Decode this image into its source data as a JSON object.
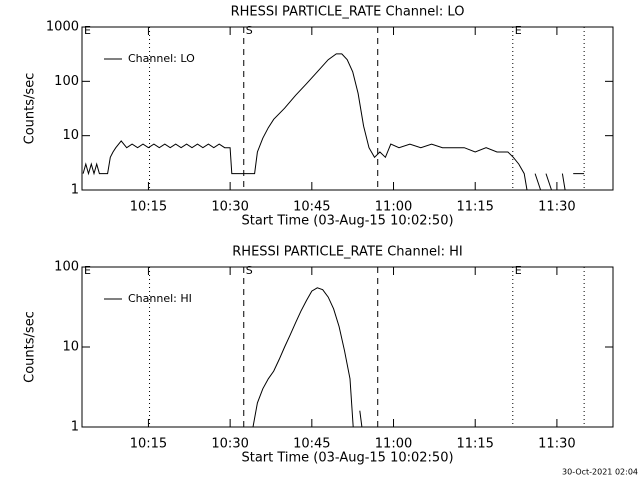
{
  "chart_data": [
    {
      "type": "line",
      "title": "RHESSI PARTICLE_RATE Channel: LO",
      "x_label": "Start Time (03-Aug-15 10:02:50)",
      "y_label": "Counts/sec",
      "x": [
        3,
        3.5,
        4,
        4.5,
        5,
        5.5,
        6,
        7,
        7.5,
        8,
        8.5,
        9,
        10,
        11,
        12,
        13,
        14,
        15,
        16,
        17,
        18,
        19,
        20,
        21,
        22,
        23,
        24,
        25,
        26,
        27,
        28,
        29,
        30,
        30.3,
        34.5,
        35,
        36,
        37,
        38,
        40,
        42,
        44,
        46,
        48,
        49.5,
        50.5,
        51.5,
        52.5,
        53.5,
        54.5,
        55.5,
        56.5,
        57.5,
        58.5,
        59.5,
        61,
        63,
        65,
        67,
        69,
        71,
        73,
        75,
        77,
        79,
        81,
        82,
        83,
        84,
        84.5,
        85,
        86,
        87,
        87.5,
        88,
        89,
        90,
        91,
        91.5,
        92,
        93,
        95
      ],
      "series": [
        {
          "name": "Channel: LO",
          "color": "#000000",
          "values": [
            2,
            3,
            2,
            3,
            2,
            3,
            2,
            2,
            2,
            4,
            5,
            6,
            8,
            6,
            7,
            6,
            7,
            6,
            7,
            6,
            7,
            6,
            7,
            6,
            7,
            6,
            7,
            6,
            7,
            6,
            7,
            6,
            6,
            2,
            2,
            5,
            9,
            14,
            20,
            32,
            55,
            90,
            150,
            250,
            320,
            320,
            250,
            150,
            60,
            15,
            6,
            4,
            5,
            4,
            7,
            6,
            7,
            6,
            7,
            6,
            6,
            6,
            5,
            6,
            5,
            5,
            4,
            3,
            2,
            1,
            null,
            2,
            1,
            null,
            2,
            1,
            null,
            2,
            1,
            null,
            2,
            2
          ]
        }
      ],
      "xlim": [
        2.8,
        100.3
      ],
      "ylim": [
        1,
        1000
      ],
      "log_y": true,
      "xticks": [
        {
          "value": 15,
          "label": "10:15"
        },
        {
          "value": 30,
          "label": "10:30"
        },
        {
          "value": 45,
          "label": "10:45"
        },
        {
          "value": 60,
          "label": "11:00"
        },
        {
          "value": 75,
          "label": "11:15"
        },
        {
          "value": 90,
          "label": "11:30"
        }
      ],
      "yticks": [
        1,
        10,
        100,
        1000
      ],
      "markers": [
        {
          "x": 2.8,
          "style": "solid",
          "label": "E"
        },
        {
          "x": 15.2,
          "style": "dotted"
        },
        {
          "x": 32.5,
          "style": "dashed",
          "label": "S"
        },
        {
          "x": 57.1,
          "style": "dashed"
        },
        {
          "x": 81.9,
          "style": "dotted",
          "label": "E"
        },
        {
          "x": 95,
          "style": "dotted"
        }
      ]
    },
    {
      "type": "line",
      "title": "RHESSI PARTICLE_RATE Channel: HI",
      "x_label": "Start Time (03-Aug-15 10:02:50)",
      "y_label": "Counts/sec",
      "x": [
        34.2,
        35,
        36,
        37,
        38,
        39,
        40,
        41,
        42,
        43,
        44,
        45,
        46,
        47,
        48,
        49,
        50,
        51,
        52,
        52.6,
        53.2,
        53.8,
        54.2
      ],
      "series": [
        {
          "name": "Channel: HI",
          "color": "#000000",
          "values": [
            1,
            2,
            3,
            4,
            5,
            7,
            10,
            14,
            20,
            28,
            38,
            50,
            55,
            52,
            42,
            30,
            18,
            9,
            4,
            1,
            null,
            1.6,
            1
          ]
        }
      ],
      "xlim": [
        2.8,
        100.3
      ],
      "ylim": [
        1,
        100
      ],
      "log_y": true,
      "xticks": [
        {
          "value": 15,
          "label": "10:15"
        },
        {
          "value": 30,
          "label": "10:30"
        },
        {
          "value": 45,
          "label": "10:45"
        },
        {
          "value": 60,
          "label": "11:00"
        },
        {
          "value": 75,
          "label": "11:15"
        },
        {
          "value": 90,
          "label": "11:30"
        }
      ],
      "yticks": [
        1,
        10,
        100
      ],
      "markers": [
        {
          "x": 2.8,
          "style": "solid",
          "label": "E"
        },
        {
          "x": 15.2,
          "style": "dotted"
        },
        {
          "x": 32.5,
          "style": "dashed",
          "label": "S"
        },
        {
          "x": 57.1,
          "style": "dashed"
        },
        {
          "x": 81.9,
          "style": "dotted",
          "label": "E"
        },
        {
          "x": 95,
          "style": "dotted"
        }
      ]
    }
  ],
  "footer": "30-Oct-2021 02:04"
}
